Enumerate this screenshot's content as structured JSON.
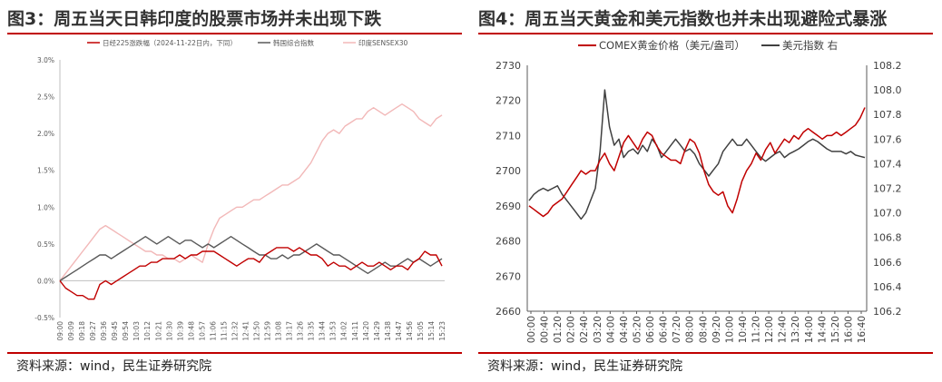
{
  "charts": [
    {
      "title": "图3：周五当天日韩印度的股票市场并未出现下跌",
      "source": "资料来源：wind，民生证券研究院"
    },
    {
      "title": "图4：周五当天黄金和美元指数也并未出现避险式暴涨",
      "source": "资料来源：wind，民生证券研究院"
    }
  ],
  "chart_data": [
    {
      "type": "line",
      "title": "图3：周五当天日韩印度的股票市场并未出现下跌",
      "x_ticks": [
        "09:00",
        "09:09",
        "09:18",
        "09:27",
        "09:36",
        "09:45",
        "09:54",
        "10:03",
        "10:12",
        "10:21",
        "10:30",
        "10:39",
        "10:48",
        "10:57",
        "11:06",
        "11:15",
        "12:32",
        "12:41",
        "12:50",
        "12:59",
        "13:08",
        "13:17",
        "13:26",
        "13:35",
        "13:44",
        "13:53",
        "14:02",
        "14:11",
        "14:20",
        "14:29",
        "14:38",
        "14:47",
        "14:56",
        "15:05",
        "15:14",
        "15:23"
      ],
      "y_ticks": [
        "-0.5%",
        "0.0%",
        "0.5%",
        "1.0%",
        "1.5%",
        "2.0%",
        "2.5%",
        "3.0%"
      ],
      "ylim": [
        -0.5,
        3.0
      ],
      "legend_position": "top",
      "grid": false,
      "colors": {
        "nikkei": "#c00000",
        "kospi": "#595959",
        "sensex": "#f2b8b8"
      },
      "series": [
        {
          "name": "日经225涨跌幅（2024-11-22日内，下同）",
          "color": "#c00000",
          "values": [
            0,
            -0.1,
            -0.15,
            -0.2,
            -0.2,
            -0.25,
            -0.25,
            -0.05,
            0.0,
            -0.05,
            0.0,
            0.05,
            0.1,
            0.15,
            0.2,
            0.2,
            0.25,
            0.25,
            0.3,
            0.3,
            0.3,
            0.35,
            0.3,
            0.35,
            0.35,
            0.4,
            0.4,
            0.4,
            0.35,
            0.3,
            0.25,
            0.2,
            0.25,
            0.3,
            0.3,
            0.25,
            0.35,
            0.4,
            0.45,
            0.45,
            0.45,
            0.4,
            0.45,
            0.4,
            0.35,
            0.35,
            0.3,
            0.2,
            0.25,
            0.2,
            0.2,
            0.15,
            0.2,
            0.25,
            0.2,
            0.2,
            0.25,
            0.2,
            0.15,
            0.2,
            0.2,
            0.15,
            0.25,
            0.3,
            0.4,
            0.35,
            0.35,
            0.2
          ]
        },
        {
          "name": "韩国综合指数",
          "color": "#595959",
          "values": [
            0,
            0.05,
            0.1,
            0.15,
            0.2,
            0.25,
            0.3,
            0.35,
            0.35,
            0.3,
            0.35,
            0.4,
            0.45,
            0.5,
            0.55,
            0.6,
            0.55,
            0.5,
            0.55,
            0.6,
            0.55,
            0.5,
            0.55,
            0.55,
            0.5,
            0.45,
            0.5,
            0.45,
            0.5,
            0.55,
            0.6,
            0.55,
            0.5,
            0.45,
            0.4,
            0.35,
            0.35,
            0.3,
            0.3,
            0.35,
            0.3,
            0.35,
            0.35,
            0.4,
            0.45,
            0.5,
            0.45,
            0.4,
            0.35,
            0.35,
            0.3,
            0.25,
            0.2,
            0.15,
            0.1,
            0.15,
            0.2,
            0.25,
            0.2,
            0.2,
            0.25,
            0.3,
            0.25,
            0.3,
            0.25,
            0.2,
            0.25,
            0.3
          ]
        },
        {
          "name": "印度SENSEX30",
          "color": "#f2b8b8",
          "values": [
            0,
            0.1,
            0.2,
            0.3,
            0.4,
            0.5,
            0.6,
            0.7,
            0.75,
            0.7,
            0.65,
            0.6,
            0.55,
            0.5,
            0.45,
            0.4,
            0.4,
            0.35,
            0.35,
            0.3,
            0.3,
            0.25,
            0.3,
            0.35,
            0.3,
            0.25,
            0.5,
            0.7,
            0.85,
            0.9,
            0.95,
            1.0,
            1.0,
            1.05,
            1.1,
            1.1,
            1.15,
            1.2,
            1.25,
            1.3,
            1.3,
            1.35,
            1.4,
            1.5,
            1.6,
            1.75,
            1.9,
            2.0,
            2.05,
            2.0,
            2.1,
            2.15,
            2.2,
            2.2,
            2.3,
            2.35,
            2.3,
            2.25,
            2.3,
            2.35,
            2.4,
            2.35,
            2.3,
            2.2,
            2.15,
            2.1,
            2.2,
            2.25
          ]
        }
      ]
    },
    {
      "type": "line",
      "title": "图4：周五当天黄金和美元指数也并未出现避险式暴涨",
      "x_ticks": [
        "00:00",
        "00:40",
        "01:20",
        "02:00",
        "02:40",
        "03:20",
        "04:00",
        "04:40",
        "05:20",
        "06:00",
        "06:40",
        "07:20",
        "08:00",
        "08:40",
        "09:20",
        "10:00",
        "10:40",
        "11:20",
        "12:00",
        "12:40",
        "13:20",
        "14:00",
        "14:40",
        "15:20",
        "16:00",
        "16:40"
      ],
      "y_left_ticks": [
        "2660",
        "2670",
        "2680",
        "2690",
        "2700",
        "2710",
        "2720",
        "2730"
      ],
      "y_right_ticks": [
        "106.2",
        "106.4",
        "106.6",
        "106.8",
        "107.0",
        "107.2",
        "107.4",
        "107.6",
        "107.8",
        "108.0",
        "108.2"
      ],
      "ylim_left": [
        2660,
        2730
      ],
      "ylim_right": [
        106.2,
        108.2
      ],
      "legend_position": "top",
      "grid": false,
      "colors": {
        "gold": "#c00000",
        "dxy": "#404040"
      },
      "series": [
        {
          "name": "COMEX黄金价格（美元/盎司）",
          "axis": "left",
          "color": "#c00000",
          "values": [
            2690,
            2689,
            2688,
            2687,
            2688,
            2690,
            2691,
            2692,
            2694,
            2696,
            2698,
            2700,
            2699,
            2700,
            2700,
            2703,
            2705,
            2702,
            2700,
            2704,
            2708,
            2710,
            2708,
            2706,
            2709,
            2711,
            2710,
            2707,
            2705,
            2704,
            2703,
            2703,
            2702,
            2706,
            2709,
            2708,
            2705,
            2700,
            2696,
            2694,
            2693,
            2694,
            2690,
            2688,
            2692,
            2697,
            2700,
            2702,
            2705,
            2703,
            2706,
            2708,
            2705,
            2707,
            2709,
            2708,
            2710,
            2709,
            2711,
            2712,
            2711,
            2710,
            2709,
            2710,
            2710,
            2711,
            2710,
            2711,
            2712,
            2713,
            2715,
            2718
          ]
        },
        {
          "name": "美元指数 右",
          "axis": "right",
          "color": "#404040",
          "values": [
            107.1,
            107.15,
            107.18,
            107.2,
            107.18,
            107.2,
            107.22,
            107.15,
            107.1,
            107.05,
            107.0,
            106.95,
            107.0,
            107.1,
            107.2,
            107.5,
            108.0,
            107.7,
            107.55,
            107.6,
            107.45,
            107.5,
            107.52,
            107.48,
            107.55,
            107.5,
            107.6,
            107.55,
            107.45,
            107.5,
            107.55,
            107.6,
            107.55,
            107.5,
            107.52,
            107.48,
            107.4,
            107.35,
            107.3,
            107.35,
            107.4,
            107.5,
            107.55,
            107.6,
            107.55,
            107.55,
            107.6,
            107.55,
            107.5,
            107.45,
            107.42,
            107.45,
            107.48,
            107.5,
            107.45,
            107.48,
            107.5,
            107.52,
            107.55,
            107.58,
            107.6,
            107.58,
            107.55,
            107.52,
            107.5,
            107.5,
            107.5,
            107.48,
            107.5,
            107.47,
            107.46,
            107.45
          ]
        }
      ]
    }
  ]
}
